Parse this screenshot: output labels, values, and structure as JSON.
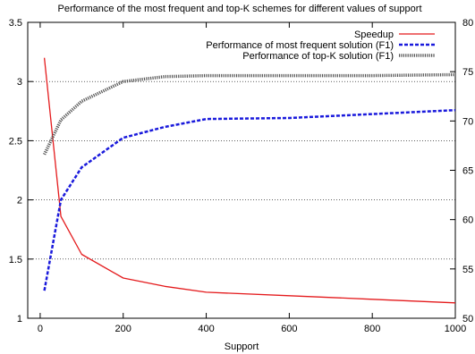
{
  "chart_data": {
    "type": "line",
    "title": "Performance of the most frequent and top-K schemes for different values of support",
    "xlabel": "Support",
    "ylabel": "",
    "y2label": "",
    "xlim": [
      -30,
      1000
    ],
    "ylim": [
      1,
      3.5
    ],
    "y2lim": [
      50,
      80
    ],
    "x_ticks": [
      0,
      200,
      400,
      600,
      800,
      1000
    ],
    "y_ticks": [
      1,
      1.5,
      2,
      2.5,
      3,
      3.5
    ],
    "y2_ticks": [
      50,
      55,
      60,
      65,
      70,
      75,
      80
    ],
    "grid": "horizontal",
    "legend_position": "top-right",
    "series": [
      {
        "name": "Speedup",
        "axis": "left",
        "color": "#e41a1c",
        "style": "solid",
        "x": [
          10,
          50,
          100,
          200,
          300,
          400,
          600,
          800,
          1000
        ],
        "y": [
          3.2,
          1.86,
          1.54,
          1.34,
          1.27,
          1.22,
          1.19,
          1.16,
          1.13
        ]
      },
      {
        "name": "Performance of most frequent solution (F1)",
        "axis": "right",
        "color": "#1a1adc",
        "style": "dashed",
        "x": [
          10,
          50,
          100,
          200,
          300,
          400,
          600,
          800,
          1000
        ],
        "y": [
          52.8,
          62,
          65.3,
          68.3,
          69.4,
          70.2,
          70.3,
          70.7,
          71.1
        ]
      },
      {
        "name": "Performance of top-K solution (F1)",
        "axis": "right",
        "color": "#555555",
        "style": "dotted",
        "x": [
          10,
          50,
          100,
          200,
          300,
          400,
          600,
          800,
          1000
        ],
        "y": [
          66.6,
          70.1,
          72,
          74,
          74.5,
          74.6,
          74.6,
          74.6,
          74.7
        ]
      }
    ]
  }
}
